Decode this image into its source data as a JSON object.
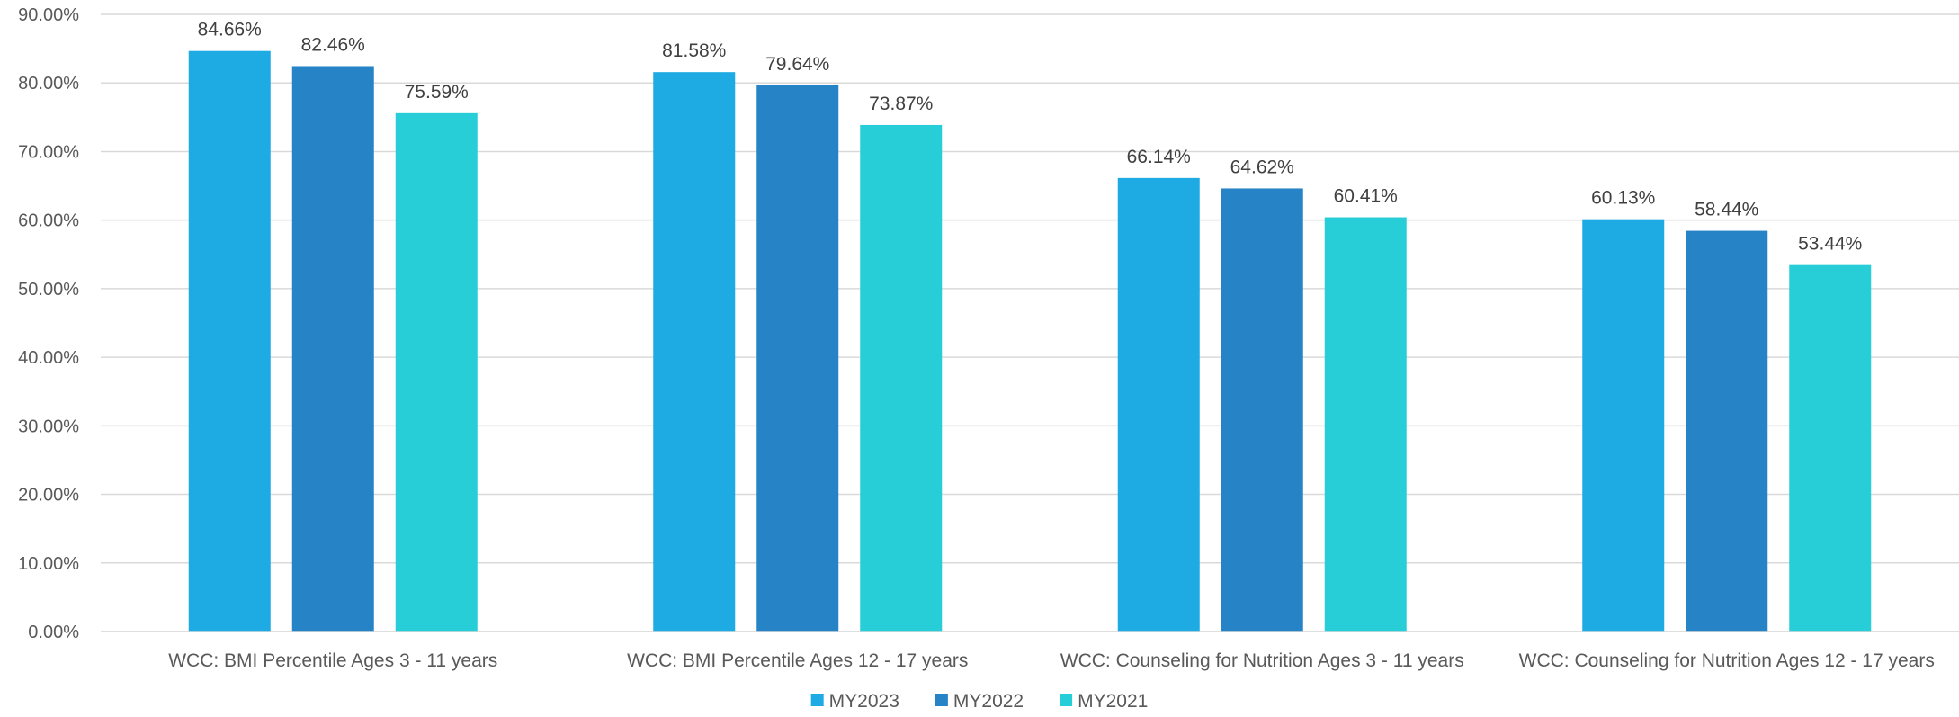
{
  "chart_data": {
    "type": "bar",
    "categories": [
      "WCC: BMI Percentile Ages 3 - 11 years",
      "WCC: BMI Percentile Ages 12 - 17 years",
      "WCC: Counseling for Nutrition Ages 3 - 11 years",
      "WCC: Counseling for Nutrition Ages 12 - 17 years"
    ],
    "series": [
      {
        "name": "MY2023",
        "color": "#1eaae2",
        "values": [
          84.66,
          81.58,
          66.14,
          60.13
        ],
        "labels": [
          "84.66%",
          "81.58%",
          "66.14%",
          "60.13%"
        ]
      },
      {
        "name": "MY2022",
        "color": "#2683c6",
        "values": [
          82.46,
          79.64,
          64.62,
          58.44
        ],
        "labels": [
          "82.46%",
          "79.64%",
          "64.62%",
          "58.44%"
        ]
      },
      {
        "name": "MY2021",
        "color": "#27ced7",
        "values": [
          75.59,
          73.87,
          60.41,
          53.44
        ],
        "labels": [
          "75.59%",
          "73.87%",
          "60.41%",
          "53.44%"
        ]
      }
    ],
    "ylim": [
      0,
      90
    ],
    "yticks": [
      "0.00%",
      "10.00%",
      "20.00%",
      "30.00%",
      "40.00%",
      "50.00%",
      "60.00%",
      "70.00%",
      "80.00%",
      "90.00%"
    ],
    "grid": true,
    "legend_position": "bottom",
    "title": "",
    "xlabel": "",
    "ylabel": ""
  }
}
